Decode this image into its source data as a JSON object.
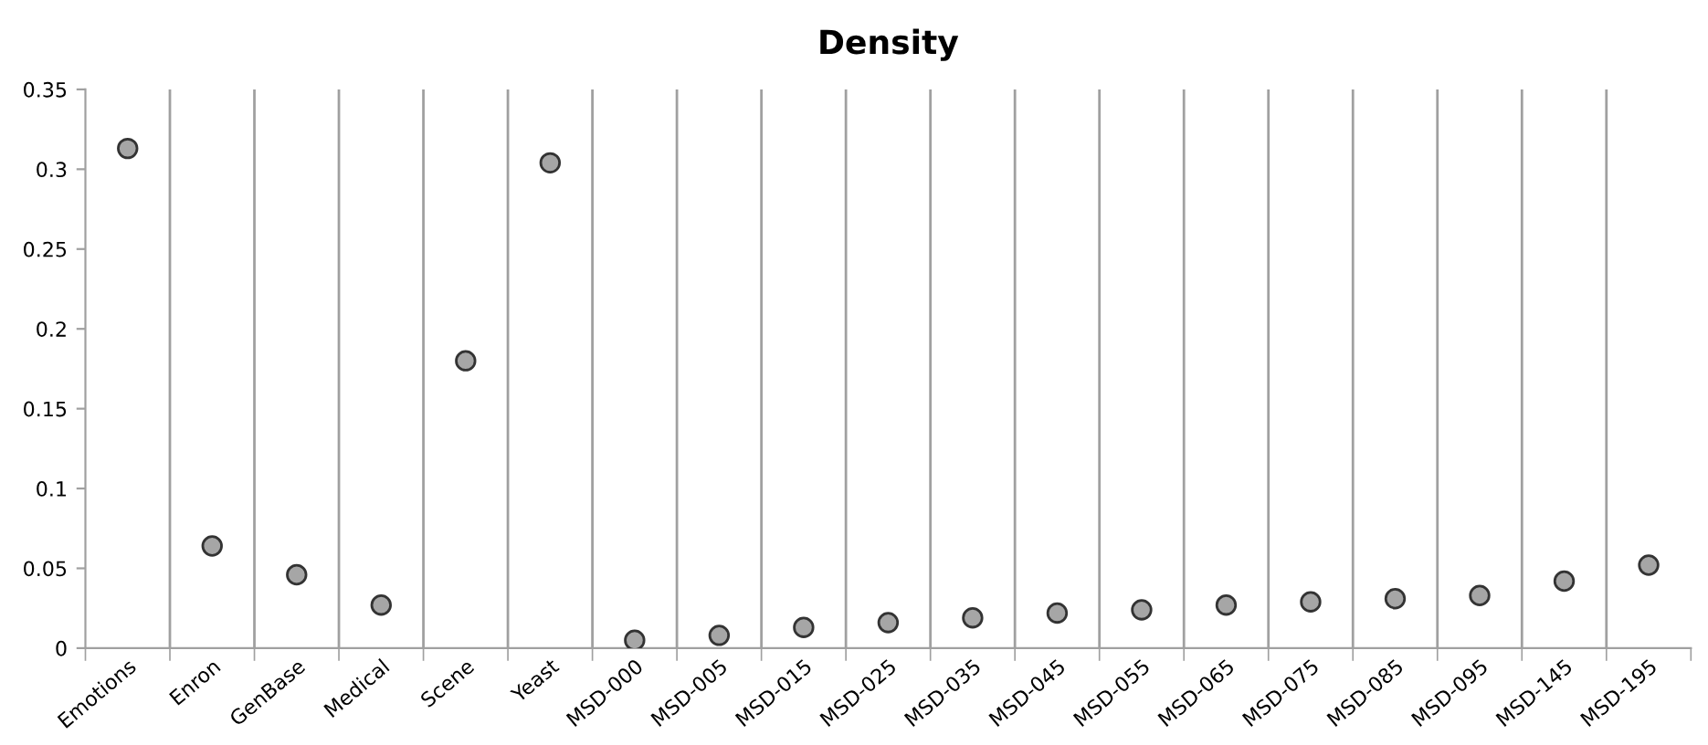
{
  "chart_data": {
    "type": "scatter",
    "title": "Density",
    "categories": [
      "Emotions",
      "Enron",
      "GenBase",
      "Medical",
      "Scene",
      "Yeast",
      "MSD-000",
      "MSD-005",
      "MSD-015",
      "MSD-025",
      "MSD-035",
      "MSD-045",
      "MSD-055",
      "MSD-065",
      "MSD-075",
      "MSD-085",
      "MSD-095",
      "MSD-145",
      "MSD-195"
    ],
    "series": [
      {
        "color": "#a6a6a6",
        "values": [
          0.313,
          0.064,
          0.046,
          0.027,
          0.18,
          0.304,
          0.005,
          0.008,
          0.013,
          0.016,
          0.019,
          0.022,
          0.024,
          0.027,
          0.029,
          0.031,
          0.033,
          0.042,
          0.052
        ]
      }
    ],
    "ylim": [
      0,
      0.35
    ],
    "yticks": [
      0,
      0.05,
      0.1,
      0.15,
      0.2,
      0.25,
      0.3,
      0.35
    ],
    "grid": "x",
    "marker": "circle",
    "legend": false
  }
}
